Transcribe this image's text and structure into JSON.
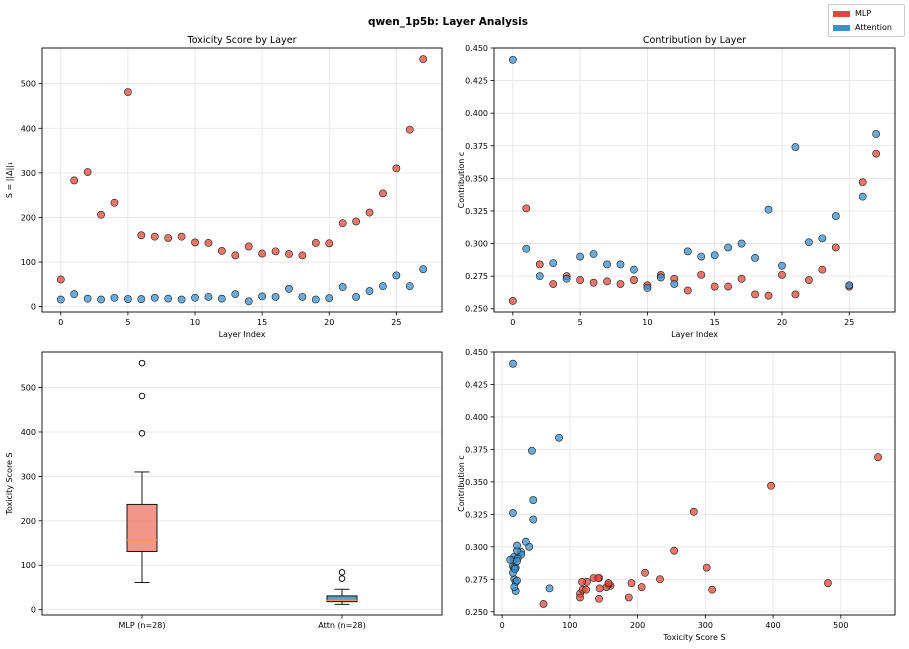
{
  "suptitle": "qwen_1p5b: Layer Analysis",
  "legend": {
    "items": [
      {
        "label": "MLP",
        "color": "#e0493a"
      },
      {
        "label": "Attention",
        "color": "#3a8fcc"
      }
    ]
  },
  "colors": {
    "mlp": "#e0493a",
    "attn": "#3a8fcc",
    "box_fill": "#f08474",
    "median": "#f59c42"
  },
  "chart_data": [
    {
      "type": "scatter",
      "title": "Toxicity Score by Layer",
      "xlabel": "Layer Index",
      "ylabel": "S = ||Δ||₁",
      "xlim": [
        -1.4,
        28.4
      ],
      "ylim": [
        -12,
        580
      ],
      "xticks": [
        0,
        5,
        10,
        15,
        20,
        25
      ],
      "yticks": [
        0,
        100,
        200,
        300,
        400,
        500
      ],
      "grid": true,
      "series": [
        {
          "name": "MLP",
          "key": "mlp",
          "x": [
            0,
            1,
            2,
            3,
            4,
            5,
            6,
            7,
            8,
            9,
            10,
            11,
            12,
            13,
            14,
            15,
            16,
            17,
            18,
            19,
            20,
            21,
            22,
            23,
            24,
            25,
            26,
            27
          ],
          "y": [
            61,
            283,
            302,
            206,
            233,
            481,
            160,
            157,
            154,
            157,
            144,
            143,
            125,
            115,
            135,
            119,
            124,
            118,
            115,
            143,
            142,
            187,
            191,
            211,
            254,
            310,
            397,
            555
          ]
        },
        {
          "name": "Attention",
          "key": "attn",
          "x": [
            0,
            1,
            2,
            3,
            4,
            5,
            6,
            7,
            8,
            9,
            10,
            11,
            12,
            13,
            14,
            15,
            16,
            17,
            18,
            19,
            20,
            21,
            22,
            23,
            24,
            25,
            26,
            27
          ],
          "y": [
            16,
            28,
            18,
            16,
            20,
            17,
            17,
            20,
            18,
            16,
            20,
            22,
            18,
            28,
            12,
            23,
            22,
            40,
            22,
            16,
            19,
            44,
            22,
            35,
            46,
            70,
            46,
            84
          ]
        }
      ]
    },
    {
      "type": "scatter",
      "title": "Contribution by Layer",
      "xlabel": "Layer Index",
      "ylabel": "Contribution c",
      "xlim": [
        -1.4,
        28.4
      ],
      "ylim": [
        0.2475,
        0.45
      ],
      "xticks": [
        0,
        5,
        10,
        15,
        20,
        25
      ],
      "yticks": [
        0.25,
        0.275,
        0.3,
        0.325,
        0.35,
        0.375,
        0.4,
        0.425,
        0.45
      ],
      "grid": true,
      "series": [
        {
          "name": "MLP",
          "key": "mlp",
          "x": [
            0,
            1,
            2,
            3,
            4,
            5,
            6,
            7,
            8,
            9,
            10,
            11,
            12,
            13,
            14,
            15,
            16,
            17,
            18,
            19,
            20,
            21,
            22,
            23,
            24,
            25,
            26,
            27
          ],
          "y": [
            0.256,
            0.327,
            0.284,
            0.269,
            0.275,
            0.272,
            0.27,
            0.271,
            0.269,
            0.272,
            0.268,
            0.276,
            0.273,
            0.264,
            0.276,
            0.267,
            0.267,
            0.273,
            0.261,
            0.26,
            0.276,
            0.261,
            0.272,
            0.28,
            0.297,
            0.267,
            0.347,
            0.369
          ]
        },
        {
          "name": "Attention",
          "key": "attn",
          "x": [
            0,
            1,
            2,
            3,
            4,
            5,
            6,
            7,
            8,
            9,
            10,
            11,
            12,
            13,
            14,
            15,
            16,
            17,
            18,
            19,
            20,
            21,
            22,
            23,
            24,
            25,
            26,
            27
          ],
          "y": [
            0.441,
            0.296,
            0.275,
            0.285,
            0.273,
            0.29,
            0.292,
            0.284,
            0.284,
            0.28,
            0.266,
            0.274,
            0.269,
            0.294,
            0.29,
            0.291,
            0.297,
            0.3,
            0.289,
            0.326,
            0.283,
            0.374,
            0.301,
            0.304,
            0.321,
            0.268,
            0.336,
            0.384
          ]
        }
      ]
    },
    {
      "type": "box",
      "title": "",
      "xlabel": "",
      "ylabel": "Toxicity Score S",
      "ylim": [
        -12,
        580
      ],
      "yticks": [
        0,
        100,
        200,
        300,
        400,
        500
      ],
      "categories": [
        "MLP (n=28)",
        "Attn (n=28)"
      ],
      "boxes": [
        {
          "whisker_low": 61,
          "q1": 131,
          "median": 157,
          "q3": 237,
          "whisker_high": 310,
          "outliers": [
            397,
            481,
            555
          ]
        },
        {
          "whisker_low": 12,
          "q1": 18,
          "median": 21,
          "q3": 31,
          "whisker_high": 46,
          "outliers": [
            70,
            84
          ]
        }
      ]
    },
    {
      "type": "scatter",
      "title": "",
      "xlabel": "Toxicity Score S",
      "ylabel": "Contribution c",
      "xlim": [
        -12,
        580
      ],
      "ylim": [
        0.2475,
        0.45
      ],
      "xticks": [
        0,
        100,
        200,
        300,
        400,
        500
      ],
      "yticks": [
        0.25,
        0.275,
        0.3,
        0.325,
        0.35,
        0.375,
        0.4,
        0.425,
        0.45
      ],
      "grid": true,
      "series": [
        {
          "name": "MLP",
          "key": "mlp",
          "x": [
            61,
            283,
            302,
            206,
            233,
            481,
            160,
            157,
            154,
            157,
            144,
            143,
            125,
            115,
            135,
            119,
            124,
            118,
            115,
            143,
            142,
            187,
            191,
            211,
            254,
            310,
            397,
            555
          ],
          "y": [
            0.256,
            0.327,
            0.284,
            0.269,
            0.275,
            0.272,
            0.27,
            0.271,
            0.269,
            0.272,
            0.268,
            0.276,
            0.273,
            0.264,
            0.276,
            0.267,
            0.267,
            0.273,
            0.261,
            0.26,
            0.276,
            0.261,
            0.272,
            0.28,
            0.297,
            0.267,
            0.347,
            0.369
          ]
        },
        {
          "name": "Attention",
          "key": "attn",
          "x": [
            16,
            28,
            18,
            16,
            20,
            17,
            17,
            20,
            18,
            16,
            20,
            22,
            18,
            28,
            12,
            23,
            22,
            40,
            22,
            16,
            19,
            44,
            22,
            35,
            46,
            70,
            46,
            84
          ],
          "y": [
            0.441,
            0.296,
            0.275,
            0.285,
            0.273,
            0.29,
            0.292,
            0.284,
            0.284,
            0.28,
            0.266,
            0.274,
            0.269,
            0.294,
            0.29,
            0.291,
            0.297,
            0.3,
            0.289,
            0.326,
            0.283,
            0.374,
            0.301,
            0.304,
            0.321,
            0.268,
            0.336,
            0.384
          ]
        }
      ]
    }
  ]
}
